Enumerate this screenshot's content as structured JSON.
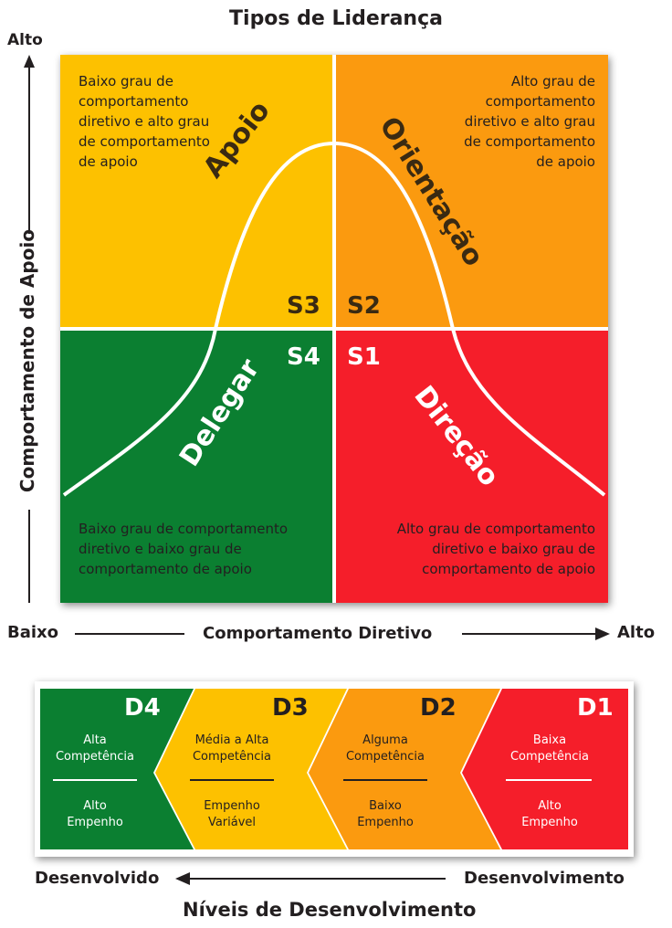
{
  "title": "Tipos de Liderança",
  "y_axis": {
    "label": "Comportamento de Apoio",
    "high": "Alto",
    "low": "Baixo"
  },
  "x_axis": {
    "label": "Comportamento Diretivo",
    "low": "Baixo",
    "high": "Alto"
  },
  "quadrants": {
    "s3": {
      "tag": "S3",
      "style": "Apoio",
      "description": [
        "Baixo grau de",
        "comportamento",
        "diretivo e alto grau",
        "de comportamento",
        "de apoio"
      ],
      "color": "#fdc100"
    },
    "s2": {
      "tag": "S2",
      "style": "Orientação",
      "description": [
        "Alto grau de",
        "comportamento",
        "diretivo e alto grau",
        "de comportamento",
        "de apoio"
      ],
      "color": "#fb9a0f"
    },
    "s4": {
      "tag": "S4",
      "style": "Delegar",
      "description": [
        "Baixo grau de comportamento",
        "diretivo e baixo grau de",
        "comportamento de apoio"
      ],
      "color": "#0b7f31"
    },
    "s1": {
      "tag": "S1",
      "style": "Direção",
      "description": [
        "Alto grau de comportamento",
        "diretivo e baixo grau de",
        "comportamento de apoio"
      ],
      "color": "#f51e2a"
    }
  },
  "development": {
    "levels": [
      {
        "tag": "D4",
        "competence": [
          "Alta",
          "Competência"
        ],
        "commitment": [
          "Alto",
          "Empenho"
        ],
        "color": "#0b7f31"
      },
      {
        "tag": "D3",
        "competence": [
          "Média a Alta",
          "Competência"
        ],
        "commitment": [
          "Empenho",
          "Variável"
        ],
        "color": "#fdc100"
      },
      {
        "tag": "D2",
        "competence": [
          "Alguma",
          "Competência"
        ],
        "commitment": [
          "Baixo",
          "Empenho"
        ],
        "color": "#fb9a0f"
      },
      {
        "tag": "D1",
        "competence": [
          "Baixa",
          "Competência"
        ],
        "commitment": [
          "Alto",
          "Empenho"
        ],
        "color": "#f51e2a"
      }
    ],
    "left_label": "Desenvolvido",
    "right_label": "Desenvolvimento",
    "title": "Níveis de Desenvolvimento"
  }
}
